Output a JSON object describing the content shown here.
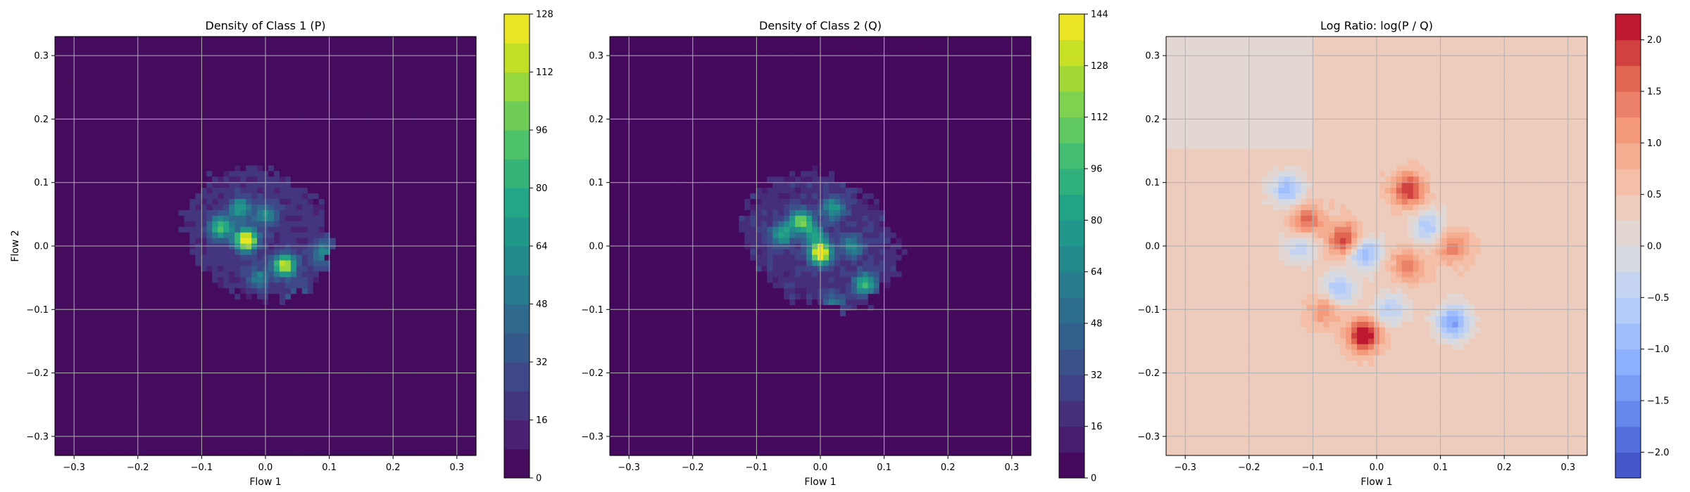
{
  "chart_data": [
    {
      "type": "heatmap",
      "title": "Density of Class 1 (P)",
      "xlabel": "Flow 1",
      "ylabel": "Flow 2",
      "xlim": [
        -0.33,
        0.33
      ],
      "ylim": [
        -0.33,
        0.33
      ],
      "xticks": [
        -0.3,
        -0.2,
        -0.1,
        0.0,
        0.1,
        0.2,
        0.3
      ],
      "yticks": [
        -0.3,
        -0.2,
        -0.1,
        0.0,
        0.1,
        0.2,
        0.3
      ],
      "xtick_labels": [
        "−0.3",
        "−0.2",
        "−0.1",
        "0.0",
        "0.1",
        "0.2",
        "0.3"
      ],
      "ytick_labels": [
        "−0.3",
        "−0.2",
        "−0.1",
        "0.0",
        "0.1",
        "0.2",
        "0.3"
      ],
      "grid": true,
      "colormap": "viridis",
      "colorbar": {
        "min": 0,
        "max": 128,
        "ticks": [
          0,
          16,
          32,
          48,
          64,
          80,
          96,
          112,
          128
        ],
        "tick_labels": [
          "0",
          "16",
          "32",
          "48",
          "64",
          "80",
          "96",
          "112",
          "128"
        ],
        "levels": 16
      },
      "region": {
        "center": [
          -0.01,
          0.02
        ],
        "extent": [
          0.12,
          0.1
        ],
        "rotation_deg": -25
      },
      "peaks": [
        {
          "x": -0.03,
          "y": 0.01,
          "value": 128
        },
        {
          "x": 0.03,
          "y": -0.03,
          "value": 105
        },
        {
          "x": -0.07,
          "y": 0.03,
          "value": 80
        },
        {
          "x": -0.04,
          "y": 0.06,
          "value": 55
        },
        {
          "x": 0.0,
          "y": 0.05,
          "value": 50
        },
        {
          "x": 0.09,
          "y": -0.01,
          "value": 45
        },
        {
          "x": -0.01,
          "y": -0.05,
          "value": 40
        },
        {
          "x": 0.05,
          "y": -0.08,
          "value": 30
        }
      ]
    },
    {
      "type": "heatmap",
      "title": "Density of Class 2 (Q)",
      "xlabel": "Flow 1",
      "ylabel": "",
      "xlim": [
        -0.33,
        0.33
      ],
      "ylim": [
        -0.33,
        0.33
      ],
      "xticks": [
        -0.3,
        -0.2,
        -0.1,
        0.0,
        0.1,
        0.2,
        0.3
      ],
      "yticks": [
        -0.3,
        -0.2,
        -0.1,
        0.0,
        0.1,
        0.2,
        0.3
      ],
      "xtick_labels": [
        "−0.3",
        "−0.2",
        "−0.1",
        "0.0",
        "0.1",
        "0.2",
        "0.3"
      ],
      "ytick_labels": [
        "−0.3",
        "−0.2",
        "−0.1",
        "0.0",
        "0.1",
        "0.2",
        "0.3"
      ],
      "grid": true,
      "colormap": "viridis",
      "colorbar": {
        "min": 0,
        "max": 144,
        "ticks": [
          0,
          16,
          32,
          48,
          64,
          80,
          96,
          112,
          128,
          144
        ],
        "tick_labels": [
          "0",
          "16",
          "32",
          "48",
          "64",
          "80",
          "96",
          "112",
          "128",
          "144"
        ],
        "levels": 18
      },
      "region": {
        "center": [
          0.0,
          0.01
        ],
        "extent": [
          0.13,
          0.1
        ],
        "rotation_deg": -30
      },
      "peaks": [
        {
          "x": 0.0,
          "y": -0.01,
          "value": 144
        },
        {
          "x": -0.03,
          "y": 0.04,
          "value": 95
        },
        {
          "x": 0.07,
          "y": -0.06,
          "value": 80
        },
        {
          "x": -0.06,
          "y": 0.02,
          "value": 70
        },
        {
          "x": 0.02,
          "y": 0.06,
          "value": 60
        },
        {
          "x": -0.01,
          "y": 0.02,
          "value": 55
        },
        {
          "x": 0.05,
          "y": 0.0,
          "value": 50
        },
        {
          "x": 0.02,
          "y": -0.09,
          "value": 35
        }
      ]
    },
    {
      "type": "heatmap",
      "title": "Log Ratio: log(P / Q)",
      "xlabel": "Flow 1",
      "ylabel": "",
      "xlim": [
        -0.33,
        0.33
      ],
      "ylim": [
        -0.33,
        0.33
      ],
      "xticks": [
        -0.3,
        -0.2,
        -0.1,
        0.0,
        0.1,
        0.2,
        0.3
      ],
      "yticks": [
        -0.3,
        -0.2,
        -0.1,
        0.0,
        0.1,
        0.2,
        0.3
      ],
      "xtick_labels": [
        "−0.3",
        "−0.2",
        "−0.1",
        "0.0",
        "0.1",
        "0.2",
        "0.3"
      ],
      "ytick_labels": [
        "−0.3",
        "−0.2",
        "−0.1",
        "0.0",
        "0.1",
        "0.2",
        "0.3"
      ],
      "grid": true,
      "colormap": "coolwarm",
      "colorbar": {
        "min": -2.25,
        "max": 2.25,
        "ticks": [
          -2.0,
          -1.5,
          -1.0,
          -0.5,
          0.0,
          0.5,
          1.0,
          1.5,
          2.0
        ],
        "tick_labels": [
          "−2.0",
          "−1.5",
          "−1.0",
          "−0.5",
          "0.0",
          "0.5",
          "1.0",
          "1.5",
          "2.0"
        ],
        "levels": 18
      },
      "background_value": 0.4,
      "upper_left_value": 0.1,
      "peaks": [
        {
          "x": -0.02,
          "y": -0.14,
          "value": 2.0
        },
        {
          "x": 0.05,
          "y": 0.09,
          "value": 1.6
        },
        {
          "x": -0.05,
          "y": 0.01,
          "value": 1.6
        },
        {
          "x": -0.11,
          "y": 0.04,
          "value": 1.2
        },
        {
          "x": 0.05,
          "y": -0.03,
          "value": 1.0
        },
        {
          "x": 0.12,
          "y": 0.0,
          "value": 1.0
        },
        {
          "x": -0.08,
          "y": -0.1,
          "value": 0.9
        },
        {
          "x": 0.12,
          "y": -0.12,
          "value": -1.7
        },
        {
          "x": -0.02,
          "y": -0.01,
          "value": -1.5
        },
        {
          "x": -0.14,
          "y": 0.09,
          "value": -1.3
        },
        {
          "x": -0.06,
          "y": -0.07,
          "value": -1.2
        },
        {
          "x": 0.08,
          "y": 0.03,
          "value": -1.1
        },
        {
          "x": 0.02,
          "y": -0.1,
          "value": -1.0
        },
        {
          "x": -0.12,
          "y": 0.0,
          "value": -0.9
        }
      ]
    }
  ]
}
